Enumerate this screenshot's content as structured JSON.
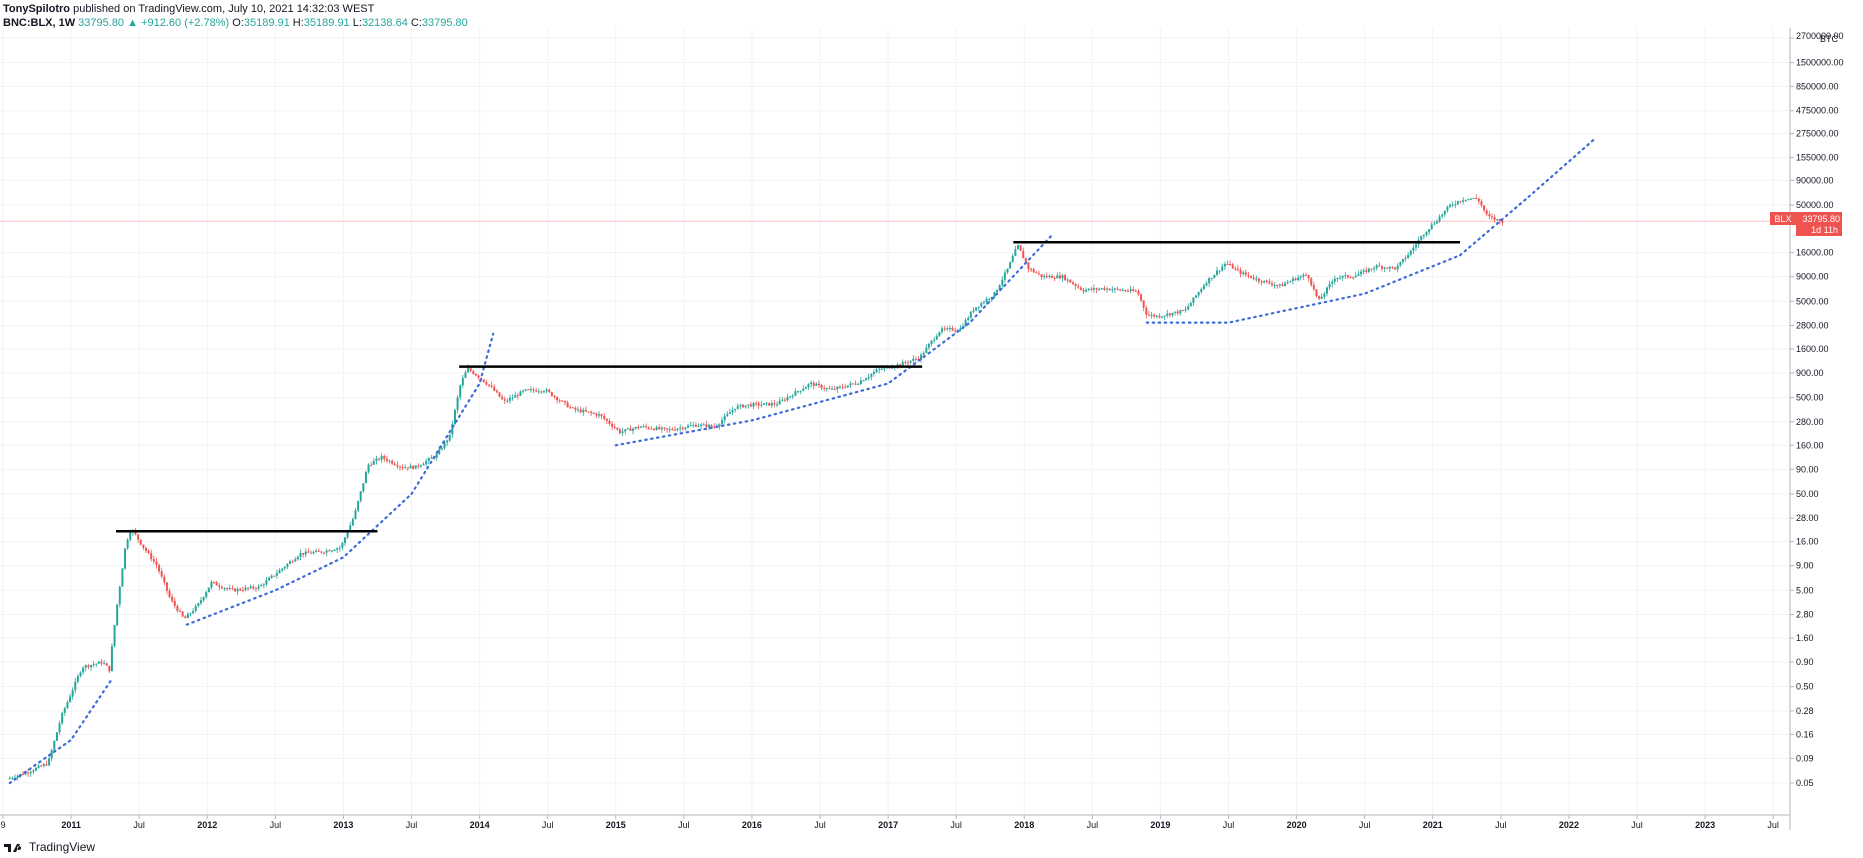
{
  "header": {
    "author": "TonySpilotro",
    "published": "published on TradingView.com, July 10, 2021 14:32:03 WEST",
    "symbol": "BNC:BLX, 1W",
    "last": "33795.80",
    "change": "+912.60 (+2.78%)",
    "o_label": "O:",
    "o": "35189.91",
    "h_label": "H:",
    "h": "35189.91",
    "l_label": "L:",
    "l": "32138.64",
    "c_label": "C:",
    "c": "33795.80"
  },
  "price_tag": {
    "symbol": "BLX",
    "price": "33795.80",
    "countdown": "1d 11h"
  },
  "footer": {
    "brand": "TradingView"
  },
  "colors": {
    "up": "#26a69a",
    "down": "#ef5350",
    "trend": "#3d6cd6",
    "line": "#000000",
    "tag": "#ef5350"
  },
  "chart_data": {
    "type": "candlestick",
    "scale": "log",
    "currency_label": "BTC",
    "y_ticks": [
      "2700000.00",
      "1500000.00",
      "850000.00",
      "475000.00",
      "275000.00",
      "155000.00",
      "90000.00",
      "50000.00",
      "16000.00",
      "9000.00",
      "5000.00",
      "2800.00",
      "1600.00",
      "900.00",
      "500.00",
      "280.00",
      "160.00",
      "90.00",
      "50.00",
      "28.00",
      "16.00",
      "9.00",
      "5.00",
      "2.80",
      "1.60",
      "0.90",
      "0.50",
      "0.28",
      "0.16",
      "0.09",
      "0.05"
    ],
    "x_ticks": [
      "9",
      "2011",
      "Jul",
      "2012",
      "Jul",
      "2013",
      "Jul",
      "2014",
      "Jul",
      "2015",
      "Jul",
      "2016",
      "Jul",
      "2017",
      "Jul",
      "2018",
      "Jul",
      "2019",
      "Jul",
      "2020",
      "Jul",
      "2021",
      "Jul",
      "2022",
      "Jul",
      "2023",
      "Jul"
    ],
    "price_path": [
      [
        "2010.55",
        0.055
      ],
      [
        "2010.70",
        0.065
      ],
      [
        "2010.85",
        0.08
      ],
      [
        "2010.95",
        0.25
      ],
      [
        "2011.10",
        0.8
      ],
      [
        "2011.25",
        0.9
      ],
      [
        "2011.30",
        0.75
      ],
      [
        "2011.35",
        3
      ],
      [
        "2011.42",
        15
      ],
      [
        "2011.46",
        22
      ],
      [
        "2011.55",
        14
      ],
      [
        "2011.65",
        9
      ],
      [
        "2011.75",
        4
      ],
      [
        "2011.85",
        2.5
      ],
      [
        "2011.95",
        3.5
      ],
      [
        "2012.05",
        6
      ],
      [
        "2012.20",
        5
      ],
      [
        "2012.40",
        5.4
      ],
      [
        "2012.55",
        8
      ],
      [
        "2012.70",
        12
      ],
      [
        "2012.85",
        12.5
      ],
      [
        "2013.00",
        14
      ],
      [
        "2013.10",
        30
      ],
      [
        "2013.20",
        100
      ],
      [
        "2013.30",
        120
      ],
      [
        "2013.45",
        95
      ],
      [
        "2013.55",
        95
      ],
      [
        "2013.70",
        125
      ],
      [
        "2013.80",
        200
      ],
      [
        "2013.88",
        700
      ],
      [
        "2013.93",
        1000
      ],
      [
        "2014.00",
        850
      ],
      [
        "2014.10",
        650
      ],
      [
        "2014.20",
        450
      ],
      [
        "2014.35",
        590
      ],
      [
        "2014.50",
        600
      ],
      [
        "2014.70",
        380
      ],
      [
        "2014.90",
        330
      ],
      [
        "2015.05",
        220
      ],
      [
        "2015.20",
        250
      ],
      [
        "2015.40",
        230
      ],
      [
        "2015.60",
        260
      ],
      [
        "2015.75",
        250
      ],
      [
        "2015.90",
        400
      ],
      [
        "2016.00",
        420
      ],
      [
        "2016.20",
        430
      ],
      [
        "2016.45",
        700
      ],
      [
        "2016.60",
        600
      ],
      [
        "2016.80",
        720
      ],
      [
        "2016.95",
        980
      ],
      [
        "2017.10",
        1100
      ],
      [
        "2017.25",
        1300
      ],
      [
        "2017.40",
        2500
      ],
      [
        "2017.55",
        2600
      ],
      [
        "2017.65",
        4200
      ],
      [
        "2017.80",
        6000
      ],
      [
        "2017.90",
        11000
      ],
      [
        "2017.97",
        19000
      ],
      [
        "2018.05",
        11000
      ],
      [
        "2018.15",
        9000
      ],
      [
        "2018.30",
        9000
      ],
      [
        "2018.45",
        6500
      ],
      [
        "2018.60",
        6800
      ],
      [
        "2018.85",
        6300
      ],
      [
        "2018.92",
        3600
      ],
      [
        "2019.00",
        3500
      ],
      [
        "2019.20",
        4000
      ],
      [
        "2019.35",
        7800
      ],
      [
        "2019.50",
        12500
      ],
      [
        "2019.60",
        10000
      ],
      [
        "2019.75",
        8200
      ],
      [
        "2019.90",
        7200
      ],
      [
        "2020.00",
        8500
      ],
      [
        "2020.10",
        9500
      ],
      [
        "2020.18",
        5000
      ],
      [
        "2020.30",
        8800
      ],
      [
        "2020.45",
        9200
      ],
      [
        "2020.60",
        11500
      ],
      [
        "2020.75",
        11000
      ],
      [
        "2020.85",
        16000
      ],
      [
        "2020.95",
        25000
      ],
      [
        "2021.05",
        35000
      ],
      [
        "2021.15",
        50000
      ],
      [
        "2021.25",
        58000
      ],
      [
        "2021.35",
        58000
      ],
      [
        "2021.42",
        38000
      ],
      [
        "2021.52",
        33795.8
      ]
    ],
    "resistance_lines": [
      {
        "from": [
          "2011.33",
          20.5
        ],
        "to": [
          "2013.25",
          20.5
        ]
      },
      {
        "from": [
          "2013.85",
          1050
        ],
        "to": [
          "2017.25",
          1050
        ]
      },
      {
        "from": [
          "2017.92",
          20500
        ],
        "to": [
          "2021.20",
          20500
        ]
      }
    ],
    "support_curves": [
      {
        "points": [
          [
            "2010.55",
            0.05
          ],
          [
            "2011.00",
            0.14
          ],
          [
            "2011.30",
            0.6
          ]
        ]
      },
      {
        "points": [
          [
            "2011.85",
            2.2
          ],
          [
            "2012.50",
            5
          ],
          [
            "2013.00",
            11
          ],
          [
            "2013.50",
            50
          ],
          [
            "2014.00",
            700
          ],
          [
            "2014.10",
            2300
          ]
        ]
      },
      {
        "points": [
          [
            "2015.00",
            160
          ],
          [
            "2016.00",
            290
          ],
          [
            "2017.00",
            700
          ],
          [
            "2017.60",
            3000
          ],
          [
            "2018.20",
            24000
          ]
        ]
      },
      {
        "points": [
          [
            "2018.90",
            3000
          ],
          [
            "2019.50",
            3000
          ],
          [
            "2020.50",
            6000
          ],
          [
            "2021.20",
            15000
          ],
          [
            "2021.70",
            60000
          ],
          [
            "2022.20",
            250000
          ]
        ]
      }
    ]
  }
}
